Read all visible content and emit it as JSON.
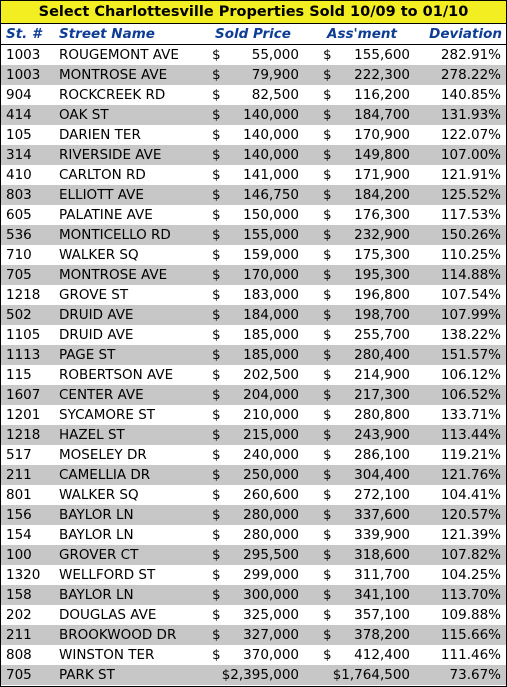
{
  "title": "Select Charlottesville Properties Sold 10/09 to 01/10",
  "headers": {
    "st_num": "St. #",
    "street": "Street Name",
    "sold": "Sold Price",
    "assessment": "Ass'ment",
    "deviation": "Deviation"
  },
  "currency_symbol": "$",
  "colors": {
    "title_bg": "#f3ee21",
    "header_text": "#0d3d94",
    "alt_row": "#c7c7c7"
  },
  "rows": [
    {
      "st": "1003",
      "street": "ROUGEMONT AVE",
      "sold": "55,000",
      "assessment": "155,600",
      "deviation": "282.91%"
    },
    {
      "st": "1003",
      "street": "MONTROSE AVE",
      "sold": "79,900",
      "assessment": "222,300",
      "deviation": "278.22%"
    },
    {
      "st": "904",
      "street": "ROCKCREEK RD",
      "sold": "82,500",
      "assessment": "116,200",
      "deviation": "140.85%"
    },
    {
      "st": "414",
      "street": "OAK ST",
      "sold": "140,000",
      "assessment": "184,700",
      "deviation": "131.93%"
    },
    {
      "st": "105",
      "street": "DARIEN TER",
      "sold": "140,000",
      "assessment": "170,900",
      "deviation": "122.07%"
    },
    {
      "st": "314",
      "street": "RIVERSIDE AVE",
      "sold": "140,000",
      "assessment": "149,800",
      "deviation": "107.00%"
    },
    {
      "st": "410",
      "street": "CARLTON RD",
      "sold": "141,000",
      "assessment": "171,900",
      "deviation": "121.91%"
    },
    {
      "st": "803",
      "street": "ELLIOTT AVE",
      "sold": "146,750",
      "assessment": "184,200",
      "deviation": "125.52%"
    },
    {
      "st": "605",
      "street": "PALATINE AVE",
      "sold": "150,000",
      "assessment": "176,300",
      "deviation": "117.53%"
    },
    {
      "st": "536",
      "street": "MONTICELLO RD",
      "sold": "155,000",
      "assessment": "232,900",
      "deviation": "150.26%"
    },
    {
      "st": "710",
      "street": "WALKER SQ",
      "sold": "159,000",
      "assessment": "175,300",
      "deviation": "110.25%"
    },
    {
      "st": "705",
      "street": "MONTROSE AVE",
      "sold": "170,000",
      "assessment": "195,300",
      "deviation": "114.88%"
    },
    {
      "st": "1218",
      "street": "GROVE ST",
      "sold": "183,000",
      "assessment": "196,800",
      "deviation": "107.54%"
    },
    {
      "st": "502",
      "street": "DRUID AVE",
      "sold": "184,000",
      "assessment": "198,700",
      "deviation": "107.99%"
    },
    {
      "st": "1105",
      "street": "DRUID AVE",
      "sold": "185,000",
      "assessment": "255,700",
      "deviation": "138.22%"
    },
    {
      "st": "1113",
      "street": "PAGE ST",
      "sold": "185,000",
      "assessment": "280,400",
      "deviation": "151.57%"
    },
    {
      "st": "115",
      "street": "ROBERTSON AVE",
      "sold": "202,500",
      "assessment": "214,900",
      "deviation": "106.12%"
    },
    {
      "st": "1607",
      "street": "CENTER AVE",
      "sold": "204,000",
      "assessment": "217,300",
      "deviation": "106.52%"
    },
    {
      "st": "1201",
      "street": "SYCAMORE ST",
      "sold": "210,000",
      "assessment": "280,800",
      "deviation": "133.71%"
    },
    {
      "st": "1218",
      "street": "HAZEL ST",
      "sold": "215,000",
      "assessment": "243,900",
      "deviation": "113.44%"
    },
    {
      "st": "517",
      "street": "MOSELEY DR",
      "sold": "240,000",
      "assessment": "286,100",
      "deviation": "119.21%"
    },
    {
      "st": "211",
      "street": "CAMELLIA DR",
      "sold": "250,000",
      "assessment": "304,400",
      "deviation": "121.76%"
    },
    {
      "st": "801",
      "street": "WALKER SQ",
      "sold": "260,600",
      "assessment": "272,100",
      "deviation": "104.41%"
    },
    {
      "st": "156",
      "street": "BAYLOR LN",
      "sold": "280,000",
      "assessment": "337,600",
      "deviation": "120.57%"
    },
    {
      "st": "154",
      "street": "BAYLOR LN",
      "sold": "280,000",
      "assessment": "339,900",
      "deviation": "121.39%"
    },
    {
      "st": "100",
      "street": "GROVER CT",
      "sold": "295,500",
      "assessment": "318,600",
      "deviation": "107.82%"
    },
    {
      "st": "1320",
      "street": "WELLFORD ST",
      "sold": "299,000",
      "assessment": "311,700",
      "deviation": "104.25%"
    },
    {
      "st": "158",
      "street": "BAYLOR LN",
      "sold": "300,000",
      "assessment": "341,100",
      "deviation": "113.70%"
    },
    {
      "st": "202",
      "street": "DOUGLAS AVE",
      "sold": "325,000",
      "assessment": "357,100",
      "deviation": "109.88%"
    },
    {
      "st": "211",
      "street": "BROOKWOOD DR",
      "sold": "327,000",
      "assessment": "378,200",
      "deviation": "115.66%"
    },
    {
      "st": "808",
      "street": "WINSTON TER",
      "sold": "370,000",
      "assessment": "412,400",
      "deviation": "111.46%"
    },
    {
      "st": "705",
      "street": "PARK ST",
      "sold": "$2,395,000",
      "assessment": "$1,764,500",
      "deviation": "73.67%",
      "inline_currency": true
    }
  ]
}
